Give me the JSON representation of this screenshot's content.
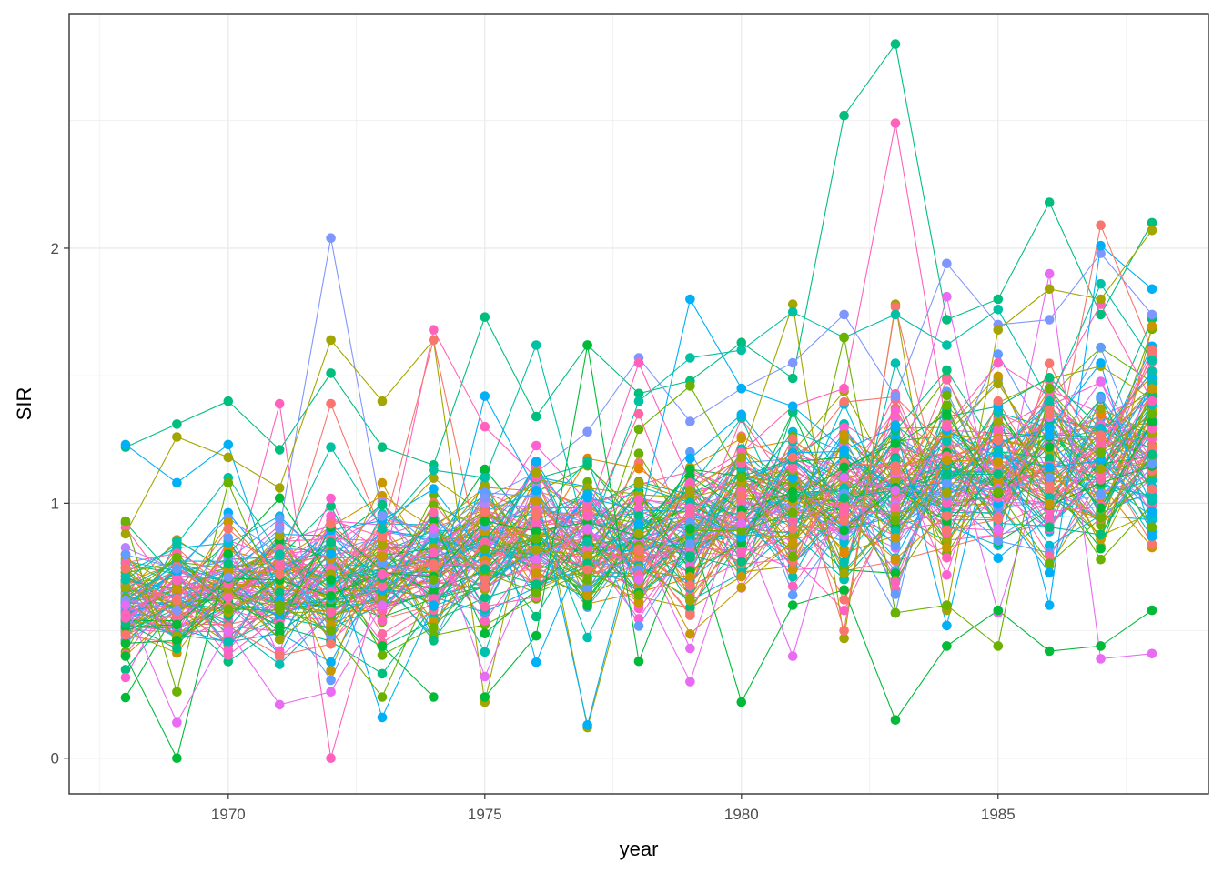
{
  "chart_data": {
    "type": "line",
    "title": "",
    "xlabel": "year",
    "ylabel": "SIR",
    "xlim": [
      1966.9,
      1989.1
    ],
    "ylim": [
      -0.14,
      2.92
    ],
    "x_ticks": [
      1970,
      1975,
      1980,
      1985
    ],
    "x_tick_labels": [
      "1970",
      "1975",
      "1980",
      "1985"
    ],
    "y_ticks": [
      0,
      1,
      2
    ],
    "y_tick_labels": [
      "0",
      "1",
      "2"
    ],
    "grid": true,
    "legend": "none",
    "x": [
      1968,
      1969,
      1970,
      1971,
      1972,
      1973,
      1974,
      1975,
      1976,
      1977,
      1978,
      1979,
      1980,
      1981,
      1982,
      1983,
      1984,
      1985,
      1986,
      1987,
      1988
    ],
    "series_count": 120,
    "series_baseline": [
      0.6,
      0.63,
      0.66,
      0.68,
      0.71,
      0.72,
      0.75,
      0.82,
      0.86,
      0.85,
      0.86,
      0.88,
      0.99,
      1.01,
      1.03,
      1.08,
      1.1,
      1.12,
      1.14,
      1.18,
      1.2
    ],
    "series_spread": [
      0.18,
      0.2,
      0.2,
      0.2,
      0.24,
      0.22,
      0.22,
      0.24,
      0.23,
      0.26,
      0.24,
      0.25,
      0.24,
      0.25,
      0.28,
      0.3,
      0.28,
      0.28,
      0.3,
      0.32,
      0.32
    ],
    "series": [
      {
        "values": [
          1.22,
          1.31,
          1.4,
          1.21,
          1.51,
          1.22,
          1.15,
          1.73,
          1.34,
          1.62,
          1.43,
          1.48,
          1.63,
          1.49,
          2.52,
          2.8,
          1.72,
          1.8,
          2.18,
          1.74,
          2.1
        ],
        "color": "#00BF7D"
      },
      {
        "values": [
          0.62,
          0.58,
          0.71,
          0.9,
          2.04,
          0.95,
          0.88,
          1.02,
          1.12,
          1.28,
          1.57,
          1.32,
          1.45,
          1.55,
          1.74,
          1.42,
          1.94,
          1.7,
          1.72,
          1.98,
          1.74
        ],
        "color": "#7F96FF"
      },
      {
        "values": [
          0.55,
          0.7,
          0.63,
          1.39,
          0.0,
          0.72,
          1.68,
          1.3,
          1.1,
          0.95,
          1.55,
          1.08,
          1.2,
          1.38,
          1.45,
          2.49,
          1.3,
          1.55,
          1.42,
          1.78,
          1.4
        ],
        "color": "#FF62BC"
      },
      {
        "values": [
          0.88,
          1.26,
          1.18,
          1.06,
          1.64,
          1.4,
          1.64,
          0.22,
          1.12,
          0.12,
          0.88,
          1.05,
          1.18,
          1.78,
          0.47,
          1.78,
          0.58,
          1.68,
          1.84,
          1.8,
          2.07
        ],
        "color": "#A3A500"
      },
      {
        "values": [
          1.23,
          1.08,
          1.23,
          0.62,
          0.8,
          0.16,
          0.6,
          1.42,
          1.05,
          0.13,
          0.92,
          1.8,
          1.45,
          1.38,
          1.21,
          1.3,
          0.52,
          1.38,
          0.6,
          2.01,
          1.84
        ],
        "color": "#00B0F6"
      },
      {
        "values": [
          0.4,
          0.0,
          0.8,
          1.02,
          0.7,
          0.44,
          0.24,
          0.24,
          0.48,
          1.62,
          0.38,
          0.9,
          0.22,
          0.6,
          0.66,
          0.15,
          0.44,
          0.58,
          0.42,
          0.44,
          0.58
        ],
        "color": "#00BA38"
      },
      {
        "values": [
          0.7,
          0.62,
          0.9,
          0.72,
          1.39,
          0.88,
          1.64,
          0.7,
          0.95,
          0.74,
          0.82,
          0.56,
          1.03,
          1.18,
          0.5,
          1.77,
          0.95,
          1.4,
          1.06,
          2.09,
          1.6
        ],
        "color": "#F8766D"
      },
      {
        "values": [
          0.6,
          0.14,
          0.5,
          0.21,
          0.26,
          0.6,
          0.9,
          0.32,
          0.78,
          0.9,
          0.7,
          0.3,
          0.92,
          0.4,
          1.1,
          1.05,
          1.81,
          0.9,
          1.9,
          0.39,
          0.41
        ],
        "color": "#E76BF3"
      },
      {
        "values": [
          0.7,
          0.84,
          1.1,
          0.8,
          1.22,
          0.9,
          1.13,
          1.1,
          1.62,
          0.85,
          1.4,
          1.57,
          1.6,
          1.75,
          1.65,
          1.74,
          1.62,
          1.76,
          1.4,
          1.86,
          1.56
        ],
        "color": "#00C1A3"
      },
      {
        "values": [
          0.93,
          0.26,
          1.08,
          0.6,
          0.5,
          0.24,
          0.7,
          0.82,
          0.86,
          0.7,
          1.29,
          1.46,
          1.1,
          0.79,
          1.65,
          0.57,
          0.6,
          0.44,
          1.45,
          1.2,
          1.35
        ],
        "color": "#6BB100"
      }
    ]
  }
}
